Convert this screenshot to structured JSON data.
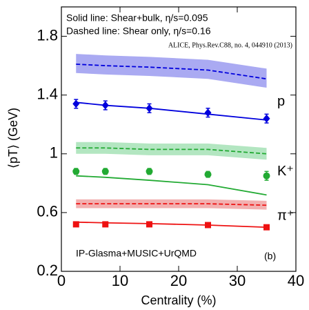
{
  "chart_data": {
    "type": "scatter",
    "annotations": [
      "Solid line: Shear+bulk, η/s=0.095",
      "Dashed line: Shear only, η/s=0.16",
      "ALICE, Phys.Rev.C88, no. 4, 044910 (2013)",
      "IP-Glasma+MUSIC+UrQMD",
      "(b)"
    ],
    "xlabel": "Centrality (%)",
    "ylabel": "⟨pT⟩ (GeV)",
    "xlim": [
      0,
      40
    ],
    "xticks": [
      0,
      10,
      20,
      30,
      40
    ],
    "ylim": [
      0.2,
      2.0
    ],
    "yticks": [
      0.2,
      0.6,
      1,
      1.4,
      1.8
    ],
    "x": [
      2.5,
      7.5,
      15,
      25,
      35
    ],
    "series": [
      {
        "name": "p",
        "color": "#0000dd",
        "band_color": "#aaaaf2",
        "marker": "diamond",
        "values": [
          1.34,
          1.33,
          1.31,
          1.28,
          1.24
        ],
        "errors": [
          0.03,
          0.03,
          0.03,
          0.03,
          0.03
        ],
        "solid": [
          1.35,
          1.33,
          1.31,
          1.27,
          1.23
        ],
        "dashed": [
          1.61,
          1.6,
          1.59,
          1.57,
          1.51
        ],
        "band_low": [
          1.55,
          1.54,
          1.53,
          1.51,
          1.45
        ],
        "band_high": [
          1.68,
          1.67,
          1.66,
          1.64,
          1.58
        ]
      },
      {
        "name": "K⁺",
        "color": "#22aa33",
        "band_color": "#b3e6c1",
        "marker": "circle",
        "values": [
          0.88,
          0.88,
          0.88,
          0.86,
          0.85
        ],
        "errors": [
          0.02,
          0.02,
          0.02,
          0.02,
          0.03
        ],
        "solid": [
          0.85,
          0.84,
          0.82,
          0.79,
          0.72
        ],
        "dashed": [
          1.04,
          1.04,
          1.03,
          1.03,
          1.0
        ],
        "band_low": [
          1.0,
          1.0,
          0.99,
          0.99,
          0.96
        ],
        "band_high": [
          1.08,
          1.08,
          1.07,
          1.07,
          1.04
        ]
      },
      {
        "name": "π⁺",
        "color": "#ee1111",
        "band_color": "#f2b0b0",
        "marker": "square",
        "values": [
          0.52,
          0.52,
          0.52,
          0.515,
          0.5
        ],
        "errors": [
          0.01,
          0.01,
          0.01,
          0.01,
          0.01
        ],
        "solid": [
          0.535,
          0.53,
          0.525,
          0.515,
          0.5
        ],
        "dashed": [
          0.66,
          0.66,
          0.66,
          0.66,
          0.65
        ],
        "band_low": [
          0.63,
          0.63,
          0.63,
          0.63,
          0.62
        ],
        "band_high": [
          0.69,
          0.69,
          0.69,
          0.69,
          0.68
        ]
      }
    ]
  }
}
